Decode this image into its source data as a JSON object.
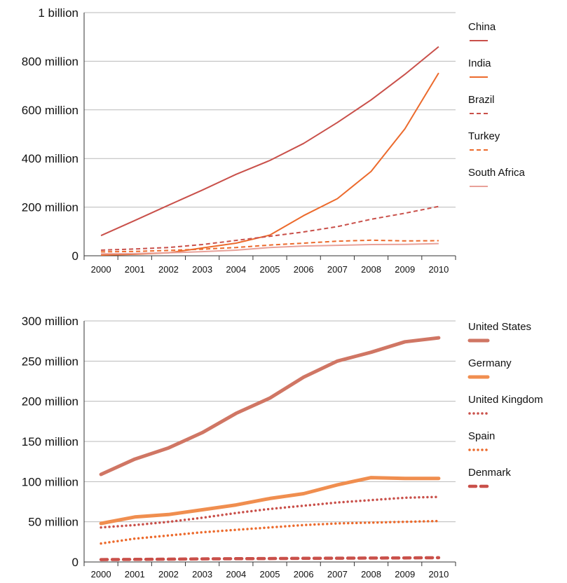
{
  "chart_data": [
    {
      "type": "line",
      "categories": [
        "2000",
        "2001",
        "2002",
        "2003",
        "2004",
        "2005",
        "2006",
        "2007",
        "2008",
        "2009",
        "2010"
      ],
      "ylim": [
        0,
        1000000000
      ],
      "yticks": [
        {
          "value": 0,
          "label": "0"
        },
        {
          "value": 200000000,
          "label": "200 million"
        },
        {
          "value": 400000000,
          "label": "400 million"
        },
        {
          "value": 600000000,
          "label": "600 million"
        },
        {
          "value": 800000000,
          "label": "800 million"
        },
        {
          "value": 1000000000,
          "label": "1 billion"
        }
      ],
      "grid": true,
      "legend": "right",
      "series": [
        {
          "name": "China",
          "color": "#c9504a",
          "style": "solid",
          "values": [
            83000000,
            145000000,
            208000000,
            270000000,
            335000000,
            392000000,
            462000000,
            548000000,
            641000000,
            746000000,
            860000000
          ]
        },
        {
          "name": "India",
          "color": "#ec6a2c",
          "style": "solid",
          "values": [
            3000000,
            6000000,
            12000000,
            32000000,
            52000000,
            85000000,
            165000000,
            235000000,
            347000000,
            522000000,
            752000000
          ]
        },
        {
          "name": "Brazil",
          "color": "#c9504a",
          "style": "dashed",
          "values": [
            23000000,
            28000000,
            34000000,
            46000000,
            63000000,
            80000000,
            98000000,
            120000000,
            150000000,
            175000000,
            203000000
          ]
        },
        {
          "name": "Turkey",
          "color": "#ec6a2c",
          "style": "dashed",
          "values": [
            16000000,
            18000000,
            22000000,
            27000000,
            34000000,
            44000000,
            52000000,
            60000000,
            64000000,
            61000000,
            62000000
          ]
        },
        {
          "name": "South Africa",
          "color": "#e8a199",
          "style": "solid",
          "values": [
            8000000,
            9000000,
            12000000,
            17000000,
            23000000,
            34000000,
            40000000,
            43000000,
            46000000,
            47000000,
            50000000
          ]
        }
      ]
    },
    {
      "type": "line",
      "categories": [
        "2000",
        "2001",
        "2002",
        "2003",
        "2004",
        "2005",
        "2006",
        "2007",
        "2008",
        "2009",
        "2010"
      ],
      "ylim": [
        0,
        300000000
      ],
      "yticks": [
        {
          "value": 0,
          "label": "0"
        },
        {
          "value": 50000000,
          "label": "50 million"
        },
        {
          "value": 100000000,
          "label": "100 million"
        },
        {
          "value": 150000000,
          "label": "150 million"
        },
        {
          "value": 200000000,
          "label": "200 million"
        },
        {
          "value": 250000000,
          "label": "250 million"
        },
        {
          "value": 300000000,
          "label": "300 million"
        }
      ],
      "grid": true,
      "legend": "right",
      "series": [
        {
          "name": "United States",
          "color": "#d07664",
          "style": "thick",
          "values": [
            109000000,
            128000000,
            142000000,
            161000000,
            185000000,
            204000000,
            230000000,
            250000000,
            261000000,
            274000000,
            279000000
          ]
        },
        {
          "name": "Germany",
          "color": "#f08e4f",
          "style": "thick",
          "values": [
            48000000,
            56000000,
            59000000,
            65000000,
            71000000,
            79000000,
            85000000,
            96000000,
            105000000,
            104000000,
            104000000
          ]
        },
        {
          "name": "United Kingdom",
          "color": "#c9504a",
          "style": "dotted",
          "values": [
            43000000,
            46000000,
            50000000,
            55000000,
            61000000,
            66000000,
            70000000,
            74000000,
            77000000,
            80000000,
            81000000
          ]
        },
        {
          "name": "Spain",
          "color": "#ec6a2c",
          "style": "dotted",
          "values": [
            23000000,
            29000000,
            33000000,
            37000000,
            40000000,
            43000000,
            46000000,
            48000000,
            49000000,
            50000000,
            51000000
          ]
        },
        {
          "name": "Denmark",
          "color": "#c9504a",
          "style": "heavy-dashed",
          "values": [
            3000000,
            3200000,
            3500000,
            3800000,
            4100000,
            4300000,
            4500000,
            4700000,
            4900000,
            5100000,
            5300000
          ]
        }
      ]
    }
  ]
}
